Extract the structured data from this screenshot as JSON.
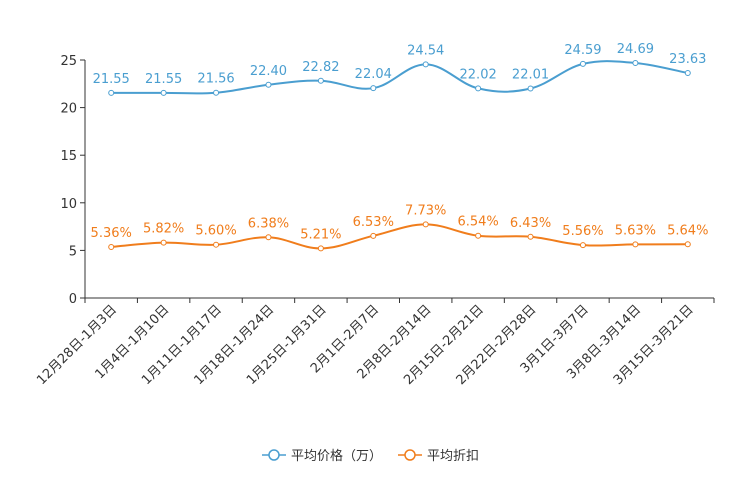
{
  "chart_data": {
    "type": "line",
    "categories": [
      "12月28日-1月3日",
      "1月4日-1月10日",
      "1月11日-1月17日",
      "1月18日-1月24日",
      "1月25日-1月31日",
      "2月1日-2月7日",
      "2月8日-2月14日",
      "2月15日-2月21日",
      "2月22日-2月28日",
      "3月1日-3月7日",
      "3月8日-3月14日",
      "3月15日-3月21日"
    ],
    "ylim": [
      0,
      25
    ],
    "yticks": [
      "0",
      "5",
      "10",
      "15",
      "20",
      "25"
    ],
    "series": [
      {
        "name": "平均价格（万）",
        "color": "#4a9ed0",
        "values": [
          21.55,
          21.55,
          21.56,
          22.4,
          22.82,
          22.04,
          24.54,
          22.02,
          22.01,
          24.59,
          24.69,
          23.63
        ],
        "labels": [
          "21.55",
          "21.55",
          "21.56",
          "22.40",
          "22.82",
          "22.04",
          "24.54",
          "22.02",
          "22.01",
          "24.59",
          "24.69",
          "23.63"
        ]
      },
      {
        "name": "平均折扣",
        "color": "#f07d1c",
        "values": [
          5.36,
          5.82,
          5.6,
          6.38,
          5.21,
          6.53,
          7.73,
          6.54,
          6.43,
          5.56,
          5.63,
          5.64
        ],
        "labels": [
          "5.36%",
          "5.82%",
          "5.60%",
          "6.38%",
          "5.21%",
          "6.53%",
          "7.73%",
          "6.54%",
          "6.43%",
          "5.56%",
          "5.63%",
          "5.64%"
        ]
      }
    ]
  }
}
